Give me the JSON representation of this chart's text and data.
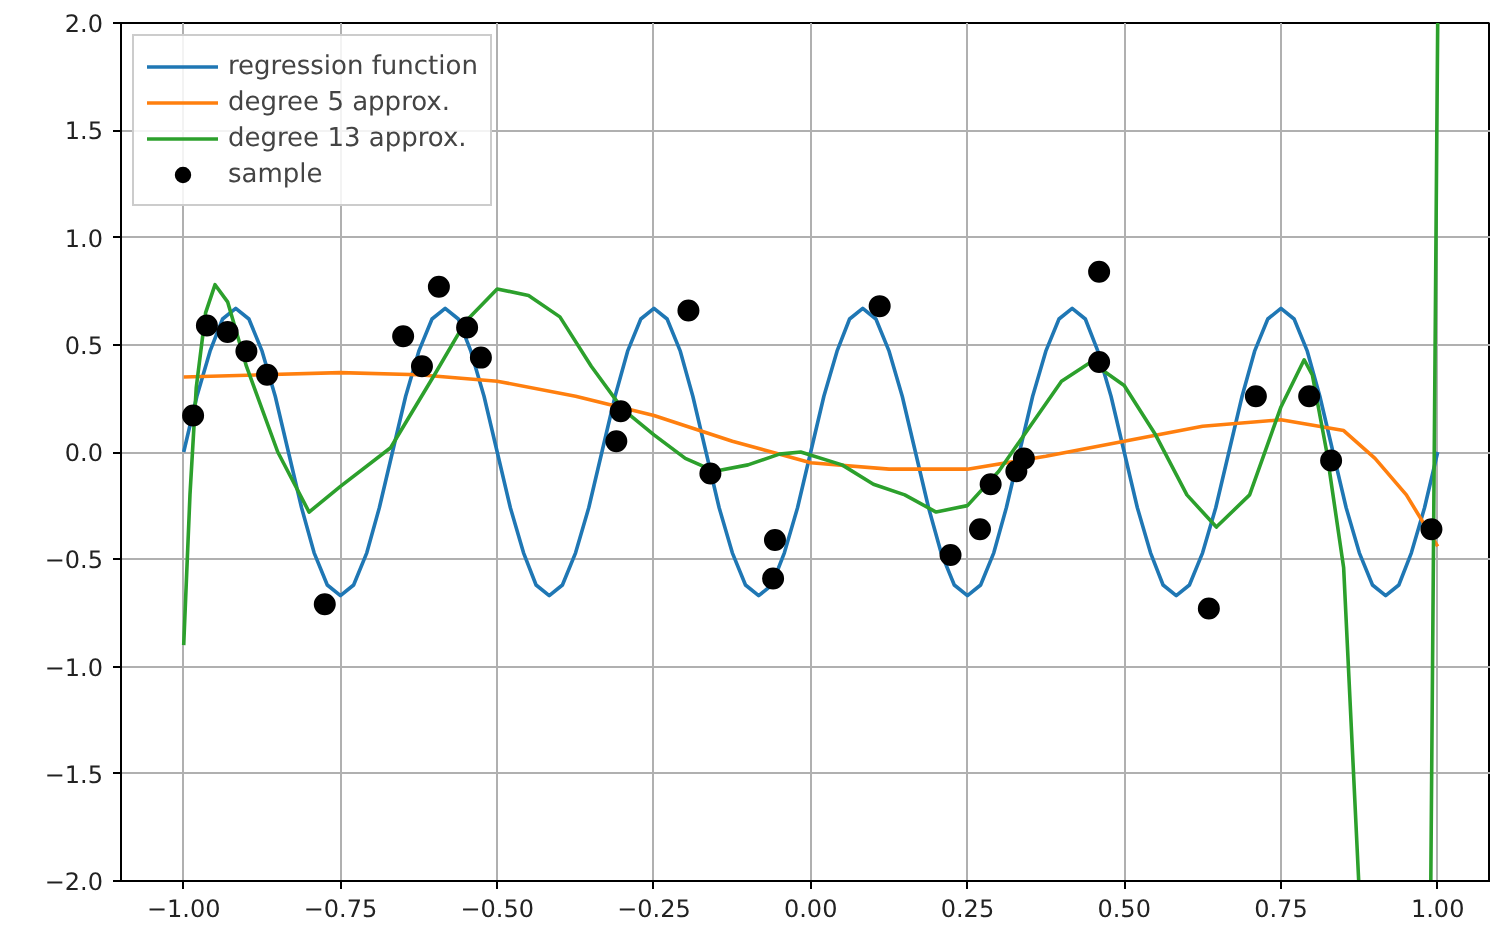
{
  "chart_data": {
    "type": "line",
    "xlim": [
      -1.1,
      1.085
    ],
    "ylim": [
      -2.0,
      2.0
    ],
    "xticks": [
      {
        "value": -1.0,
        "label": "−1.00"
      },
      {
        "value": -0.75,
        "label": "−0.75"
      },
      {
        "value": -0.5,
        "label": "−0.50"
      },
      {
        "value": -0.25,
        "label": "−0.25"
      },
      {
        "value": 0,
        "label": "0.00"
      },
      {
        "value": 0.25,
        "label": "0.25"
      },
      {
        "value": 0.5,
        "label": "0.50"
      },
      {
        "value": 0.75,
        "label": "0.75"
      },
      {
        "value": 1.0,
        "label": "1.00"
      }
    ],
    "yticks": [
      {
        "value": -2.0,
        "label": "−2.0"
      },
      {
        "value": -1.5,
        "label": "−1.5"
      },
      {
        "value": -1.0,
        "label": "−1.0"
      },
      {
        "value": -0.5,
        "label": "−0.5"
      },
      {
        "value": 0,
        "label": "0.0"
      },
      {
        "value": 0.5,
        "label": "0.5"
      },
      {
        "value": 1.0,
        "label": "1.0"
      },
      {
        "value": 1.5,
        "label": "1.5"
      },
      {
        "value": 2.0,
        "label": "2.0"
      }
    ],
    "grid": true,
    "legend": "top left",
    "series": [
      {
        "name": "regression function",
        "color": "#1f77b4",
        "x": [
          -1.0,
          -0.979,
          -0.958,
          -0.938,
          -0.917,
          -0.896,
          -0.875,
          -0.854,
          -0.833,
          -0.812,
          -0.792,
          -0.771,
          -0.75,
          -0.729,
          -0.708,
          -0.688,
          -0.667,
          -0.646,
          -0.625,
          -0.604,
          -0.583,
          -0.562,
          -0.542,
          -0.521,
          -0.5,
          -0.479,
          -0.458,
          -0.438,
          -0.417,
          -0.396,
          -0.375,
          -0.354,
          -0.333,
          -0.312,
          -0.292,
          -0.271,
          -0.25,
          -0.229,
          -0.208,
          -0.188,
          -0.167,
          -0.146,
          -0.125,
          -0.104,
          -0.083,
          -0.062,
          -0.042,
          -0.021,
          0.0,
          0.021,
          0.042,
          0.062,
          0.083,
          0.104,
          0.125,
          0.146,
          0.167,
          0.188,
          0.208,
          0.229,
          0.25,
          0.271,
          0.292,
          0.312,
          0.333,
          0.354,
          0.375,
          0.396,
          0.417,
          0.438,
          0.458,
          0.479,
          0.5,
          0.521,
          0.542,
          0.562,
          0.583,
          0.604,
          0.625,
          0.646,
          0.667,
          0.688,
          0.708,
          0.729,
          0.75,
          0.771,
          0.792,
          0.812,
          0.833,
          0.854,
          0.875,
          0.896,
          0.917,
          0.938,
          0.958,
          0.979,
          1.0
        ],
        "values": [
          0,
          0.26,
          0.47,
          0.62,
          0.67,
          0.62,
          0.47,
          0.26,
          0,
          -0.26,
          -0.47,
          -0.62,
          -0.67,
          -0.62,
          -0.47,
          -0.26,
          0,
          0.26,
          0.47,
          0.62,
          0.67,
          0.62,
          0.47,
          0.26,
          0,
          -0.26,
          -0.47,
          -0.62,
          -0.67,
          -0.62,
          -0.47,
          -0.26,
          0,
          0.26,
          0.47,
          0.62,
          0.67,
          0.62,
          0.47,
          0.26,
          0,
          -0.26,
          -0.47,
          -0.62,
          -0.67,
          -0.62,
          -0.47,
          -0.26,
          0,
          0.26,
          0.47,
          0.62,
          0.67,
          0.62,
          0.47,
          0.26,
          0,
          -0.26,
          -0.47,
          -0.62,
          -0.67,
          -0.62,
          -0.47,
          -0.26,
          0,
          0.26,
          0.47,
          0.62,
          0.67,
          0.62,
          0.47,
          0.26,
          0,
          -0.26,
          -0.47,
          -0.62,
          -0.67,
          -0.62,
          -0.47,
          -0.26,
          0,
          0.26,
          0.47,
          0.62,
          0.67,
          0.62,
          0.47,
          0.26,
          0,
          -0.26,
          -0.47,
          -0.62,
          -0.67,
          -0.62,
          -0.47,
          -0.26,
          0
        ]
      },
      {
        "name": "degree 5 approx.",
        "color": "#ff7f0e",
        "x": [
          -1.0,
          -0.875,
          -0.75,
          -0.625,
          -0.5,
          -0.375,
          -0.25,
          -0.125,
          0.0,
          0.125,
          0.25,
          0.375,
          0.5,
          0.625,
          0.75,
          0.85,
          0.9,
          0.95,
          1.0
        ],
        "values": [
          0.35,
          0.36,
          0.37,
          0.36,
          0.33,
          0.26,
          0.17,
          0.05,
          -0.05,
          -0.08,
          -0.08,
          -0.02,
          0.05,
          0.12,
          0.15,
          0.1,
          -0.03,
          -0.2,
          -0.44
        ]
      },
      {
        "name": "degree 13 approx.",
        "color": "#2ca02c",
        "x": [
          -1.0,
          -0.99,
          -0.98,
          -0.965,
          -0.95,
          -0.93,
          -0.9,
          -0.85,
          -0.8,
          -0.75,
          -0.67,
          -0.6,
          -0.55,
          -0.5,
          -0.45,
          -0.4,
          -0.35,
          -0.3,
          -0.25,
          -0.2,
          -0.153,
          -0.1,
          -0.05,
          -0.016,
          0.05,
          0.1,
          0.15,
          0.2,
          0.25,
          0.3,
          0.35,
          0.4,
          0.447,
          0.5,
          0.55,
          0.6,
          0.647,
          0.7,
          0.75,
          0.787,
          0.8,
          0.823,
          0.85,
          0.874,
          0.93,
          0.989,
          1.0
        ],
        "values": [
          -0.9,
          -0.2,
          0.3,
          0.65,
          0.78,
          0.7,
          0.4,
          0.0,
          -0.28,
          -0.16,
          0.02,
          0.36,
          0.61,
          0.76,
          0.73,
          0.63,
          0.4,
          0.2,
          0.08,
          -0.03,
          -0.09,
          -0.06,
          -0.01,
          0.0,
          -0.06,
          -0.15,
          -0.2,
          -0.28,
          -0.25,
          -0.09,
          0.12,
          0.33,
          0.42,
          0.31,
          0.08,
          -0.2,
          -0.35,
          -0.2,
          0.21,
          0.43,
          0.36,
          0.0,
          -0.54,
          -2.0,
          null,
          -2.0,
          2.0
        ]
      },
      {
        "name": "sample",
        "type": "scatter",
        "marker": "circle",
        "color": "#000000",
        "x": [
          -0.985,
          -0.963,
          -0.93,
          -0.9,
          -0.867,
          -0.775,
          -0.65,
          -0.62,
          -0.593,
          -0.548,
          -0.526,
          -0.31,
          -0.303,
          -0.195,
          -0.16,
          -0.057,
          -0.06,
          0.11,
          0.223,
          0.27,
          0.287,
          0.328,
          0.34,
          0.46,
          0.46,
          0.635,
          0.71,
          0.795,
          0.83,
          0.99
        ],
        "values": [
          0.17,
          0.59,
          0.56,
          0.47,
          0.36,
          -0.71,
          0.54,
          0.4,
          0.77,
          0.58,
          0.44,
          0.05,
          0.19,
          0.66,
          -0.1,
          -0.41,
          -0.59,
          0.68,
          -0.48,
          -0.36,
          -0.15,
          -0.09,
          -0.03,
          0.84,
          0.42,
          -0.73,
          0.26,
          0.26,
          -0.04,
          -0.36
        ]
      }
    ]
  }
}
